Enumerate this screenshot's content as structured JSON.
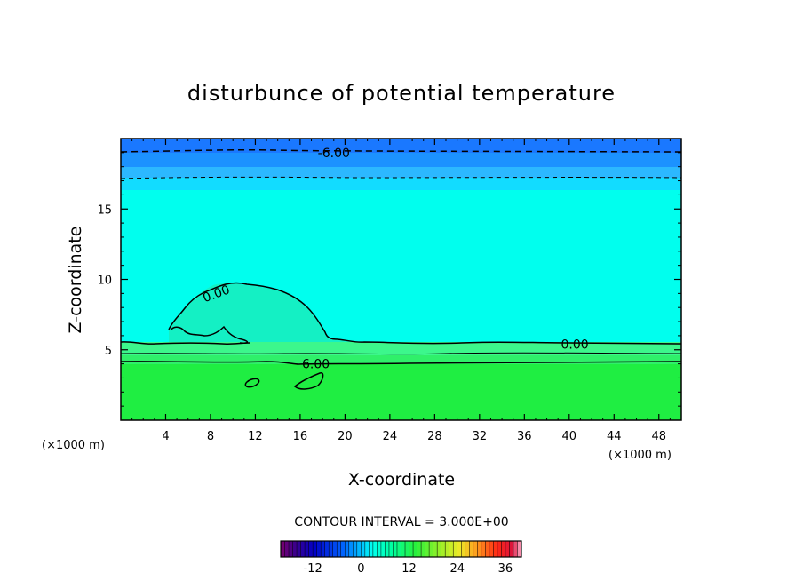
{
  "chart_data": {
    "type": "heatmap",
    "title": "disturbunce of potential temperature",
    "xlabel": "X-coordinate",
    "ylabel": "Z-coordinate",
    "x_unit": "(×1000 m)",
    "y_unit": "(×1000 m)",
    "xlim": [
      0,
      50
    ],
    "ylim": [
      0,
      20
    ],
    "x_ticks": [
      4,
      8,
      12,
      16,
      20,
      24,
      28,
      32,
      36,
      40,
      44,
      48
    ],
    "x_tick_labels": [
      "4",
      "8",
      "12",
      "16",
      "20",
      "24",
      "28",
      "32",
      "36",
      "40",
      "44",
      "48"
    ],
    "y_ticks": [
      5,
      10,
      15
    ],
    "y_tick_labels": [
      "5",
      "10",
      "15"
    ],
    "contour_interval_text": "CONTOUR INTERVAL = 3.000E+00",
    "contour_interval": 3,
    "contour_labels": [
      {
        "text": "-6.00",
        "x": 19,
        "z": 19.0
      },
      {
        "text": "0.00",
        "x": 8.5,
        "z": 9.0
      },
      {
        "text": "0.00",
        "x": 40.5,
        "z": 5.4
      },
      {
        "text": "6.00",
        "x": 17.4,
        "z": 4.0
      }
    ],
    "colorbar": {
      "min": -20,
      "max": 40,
      "ticks": [
        -12,
        0,
        12,
        24,
        36
      ],
      "tick_labels": [
        "-12",
        "0",
        "12",
        "24",
        "36"
      ]
    },
    "colors": {
      "upper_blue": "#1a78ff",
      "mid_blue": "#2fa8ff",
      "cyan": "#00ffee",
      "tongue": "#15f2c0",
      "green_transition": "#3cf78a",
      "green": "#1fee42"
    }
  }
}
